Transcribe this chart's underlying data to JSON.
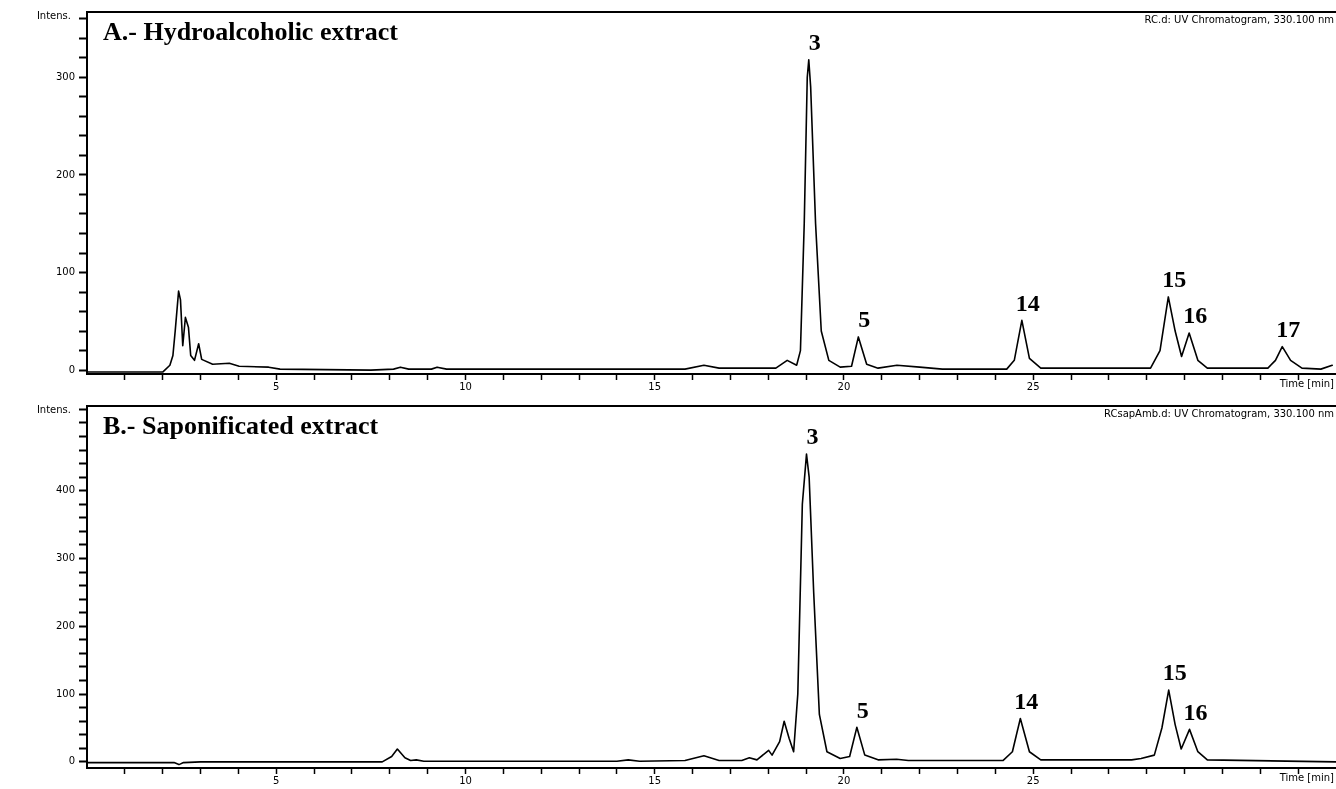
{
  "chart_data": [
    {
      "type": "line",
      "title": "A.- Hydroalcoholic extract",
      "xlabel": "Time [min]",
      "ylabel": "Intens.",
      "color": "#000000",
      "marker": "none",
      "line_style": "solid",
      "grid": false,
      "legend": false,
      "xlim": [
        0,
        33
      ],
      "ylim": [
        -4,
        367
      ],
      "xticks": [
        {
          "value": 1,
          "label": null
        },
        {
          "value": 2,
          "label": null
        },
        {
          "value": 3,
          "label": null
        },
        {
          "value": 4,
          "label": null
        },
        5,
        {
          "value": 6,
          "label": null
        },
        {
          "value": 7,
          "label": null
        },
        {
          "value": 8,
          "label": null
        },
        {
          "value": 9,
          "label": null
        },
        10,
        {
          "value": 11,
          "label": null
        },
        {
          "value": 12,
          "label": null
        },
        {
          "value": 13,
          "label": null
        },
        {
          "value": 14,
          "label": null
        },
        15,
        {
          "value": 16,
          "label": null
        },
        {
          "value": 17,
          "label": null
        },
        {
          "value": 18,
          "label": null
        },
        {
          "value": 19,
          "label": null
        },
        20,
        {
          "value": 21,
          "label": null
        },
        {
          "value": 22,
          "label": null
        },
        {
          "value": 23,
          "label": null
        },
        {
          "value": 24,
          "label": null
        },
        25,
        {
          "value": 26,
          "label": null
        },
        {
          "value": 27,
          "label": null
        },
        {
          "value": 28,
          "label": null
        },
        {
          "value": 29,
          "label": null
        },
        {
          "value": 30,
          "label": null
        },
        {
          "value": 31,
          "label": null
        },
        {
          "value": 32,
          "label": null
        }
      ],
      "yticks": [
        0,
        {
          "value": 20,
          "label": null
        },
        {
          "value": 40,
          "label": null
        },
        {
          "value": 60,
          "label": null
        },
        {
          "value": 80,
          "label": null
        },
        100,
        {
          "value": 120,
          "label": null
        },
        {
          "value": 140,
          "label": null
        },
        {
          "value": 160,
          "label": null
        },
        {
          "value": 180,
          "label": null
        },
        200,
        {
          "value": 220,
          "label": null
        },
        {
          "value": 240,
          "label": null
        },
        {
          "value": 260,
          "label": null
        },
        {
          "value": 280,
          "label": null
        },
        300,
        {
          "value": 320,
          "label": null
        },
        {
          "value": 340,
          "label": null
        },
        {
          "value": 360,
          "label": null
        }
      ],
      "x": [
        0,
        2.0,
        2.19,
        2.27,
        2.33,
        2.42,
        2.47,
        2.53,
        2.6,
        2.68,
        2.74,
        2.84,
        2.95,
        3.03,
        3.32,
        3.76,
        4.02,
        4.8,
        5.1,
        7.5,
        8.1,
        8.28,
        8.5,
        9.1,
        9.25,
        9.5,
        15.8,
        16.3,
        16.7,
        18.2,
        18.5,
        18.75,
        18.85,
        18.95,
        19.03,
        19.07,
        19.12,
        19.25,
        19.4,
        19.6,
        19.9,
        20.2,
        20.38,
        20.6,
        20.9,
        21.4,
        22,
        22.6,
        24.3,
        24.5,
        24.7,
        24.9,
        25.2,
        28.1,
        28.35,
        28.57,
        28.75,
        28.92,
        29.12,
        29.35,
        29.6,
        30.8,
        31.2,
        31.4,
        31.58,
        31.8,
        32.1,
        32.6,
        32.9
      ],
      "values": [
        -2,
        -2,
        5,
        15,
        40,
        81,
        72,
        25,
        54,
        44,
        15,
        10,
        27,
        11,
        6,
        7,
        4,
        3,
        1,
        0,
        1,
        3,
        1,
        1,
        3,
        1,
        1,
        5,
        2,
        2,
        10,
        5,
        20,
        150,
        300,
        318,
        290,
        150,
        40,
        10,
        3,
        4,
        34,
        6,
        2,
        5,
        3,
        1,
        1,
        10,
        51,
        12,
        2,
        2,
        20,
        75,
        40,
        14,
        38,
        10,
        2,
        2,
        2,
        10,
        24,
        10,
        2,
        1,
        5
      ],
      "annotations": [
        "RC.d: UV Chromatogram, 330.100 nm",
        {
          "text": "3",
          "x": 19.07,
          "y": 318
        },
        {
          "text": "5",
          "x": 20.38,
          "y": 34
        },
        {
          "text": "14",
          "x": 24.7,
          "y": 51
        },
        {
          "text": "15",
          "x": 28.57,
          "y": 75
        },
        {
          "text": "16",
          "x": 29.12,
          "y": 38
        },
        {
          "text": "17",
          "x": 31.58,
          "y": 24
        }
      ]
    },
    {
      "type": "line",
      "title": "B.- Saponificated extract",
      "xlabel": "Time [min]",
      "ylabel": "Intens.",
      "color": "#000000",
      "marker": "none",
      "line_style": "solid",
      "grid": false,
      "legend": false,
      "xlim": [
        0,
        33
      ],
      "ylim": [
        -9,
        525
      ],
      "xticks": [
        {
          "value": 1,
          "label": null
        },
        {
          "value": 2,
          "label": null
        },
        {
          "value": 3,
          "label": null
        },
        {
          "value": 4,
          "label": null
        },
        5,
        {
          "value": 6,
          "label": null
        },
        {
          "value": 7,
          "label": null
        },
        {
          "value": 8,
          "label": null
        },
        {
          "value": 9,
          "label": null
        },
        10,
        {
          "value": 11,
          "label": null
        },
        {
          "value": 12,
          "label": null
        },
        {
          "value": 13,
          "label": null
        },
        {
          "value": 14,
          "label": null
        },
        15,
        {
          "value": 16,
          "label": null
        },
        {
          "value": 17,
          "label": null
        },
        {
          "value": 18,
          "label": null
        },
        {
          "value": 19,
          "label": null
        },
        20,
        {
          "value": 21,
          "label": null
        },
        {
          "value": 22,
          "label": null
        },
        {
          "value": 23,
          "label": null
        },
        {
          "value": 24,
          "label": null
        },
        25,
        {
          "value": 26,
          "label": null
        },
        {
          "value": 27,
          "label": null
        },
        {
          "value": 28,
          "label": null
        },
        {
          "value": 29,
          "label": null
        },
        {
          "value": 30,
          "label": null
        },
        {
          "value": 31,
          "label": null
        },
        {
          "value": 32,
          "label": null
        }
      ],
      "yticks": [
        0,
        {
          "value": 20,
          "label": null
        },
        {
          "value": 40,
          "label": null
        },
        {
          "value": 60,
          "label": null
        },
        {
          "value": 80,
          "label": null
        },
        100,
        {
          "value": 120,
          "label": null
        },
        {
          "value": 140,
          "label": null
        },
        {
          "value": 160,
          "label": null
        },
        {
          "value": 180,
          "label": null
        },
        200,
        {
          "value": 220,
          "label": null
        },
        {
          "value": 240,
          "label": null
        },
        {
          "value": 260,
          "label": null
        },
        {
          "value": 280,
          "label": null
        },
        300,
        {
          "value": 320,
          "label": null
        },
        {
          "value": 340,
          "label": null
        },
        {
          "value": 360,
          "label": null
        },
        {
          "value": 380,
          "label": null
        },
        400,
        {
          "value": 420,
          "label": null
        },
        {
          "value": 440,
          "label": null
        },
        {
          "value": 460,
          "label": null
        },
        {
          "value": 480,
          "label": null
        },
        {
          "value": 500,
          "label": null
        },
        {
          "value": 520,
          "label": null
        }
      ],
      "x": [
        0,
        2.3,
        2.43,
        2.55,
        3,
        7.8,
        8.05,
        8.2,
        8.4,
        8.55,
        8.7,
        8.9,
        14,
        14.3,
        14.6,
        15.8,
        16.3,
        16.7,
        17.3,
        17.5,
        17.7,
        18.01,
        18.1,
        18.3,
        18.42,
        18.55,
        18.67,
        18.78,
        18.9,
        19.01,
        19.08,
        19.2,
        19.35,
        19.55,
        19.9,
        20.15,
        20.34,
        20.55,
        20.9,
        21.39,
        21.7,
        24.2,
        24.45,
        24.66,
        24.9,
        25.2,
        27.6,
        27.85,
        28.2,
        28.4,
        28.58,
        28.75,
        28.91,
        29.13,
        29.35,
        29.6,
        33
      ],
      "values": [
        -1,
        -1,
        -4,
        -1,
        0,
        0,
        8,
        19,
        6,
        2,
        3,
        1,
        1,
        3,
        1,
        2,
        9,
        2,
        2,
        6,
        3,
        17,
        10,
        30,
        60,
        35,
        15,
        100,
        380,
        454,
        420,
        250,
        70,
        15,
        5,
        8,
        51,
        10,
        3,
        4,
        2,
        2,
        15,
        64,
        15,
        3,
        3,
        5,
        10,
        50,
        106,
        55,
        19,
        48,
        15,
        3,
        0
      ],
      "annotations": [
        "RCsapAmb.d: UV Chromatogram, 330.100 nm",
        {
          "text": "3",
          "x": 19.01,
          "y": 454
        },
        {
          "text": "5",
          "x": 20.34,
          "y": 51
        },
        {
          "text": "14",
          "x": 24.66,
          "y": 64
        },
        {
          "text": "15",
          "x": 28.58,
          "y": 106
        },
        {
          "text": "16",
          "x": 29.13,
          "y": 48
        }
      ]
    }
  ]
}
